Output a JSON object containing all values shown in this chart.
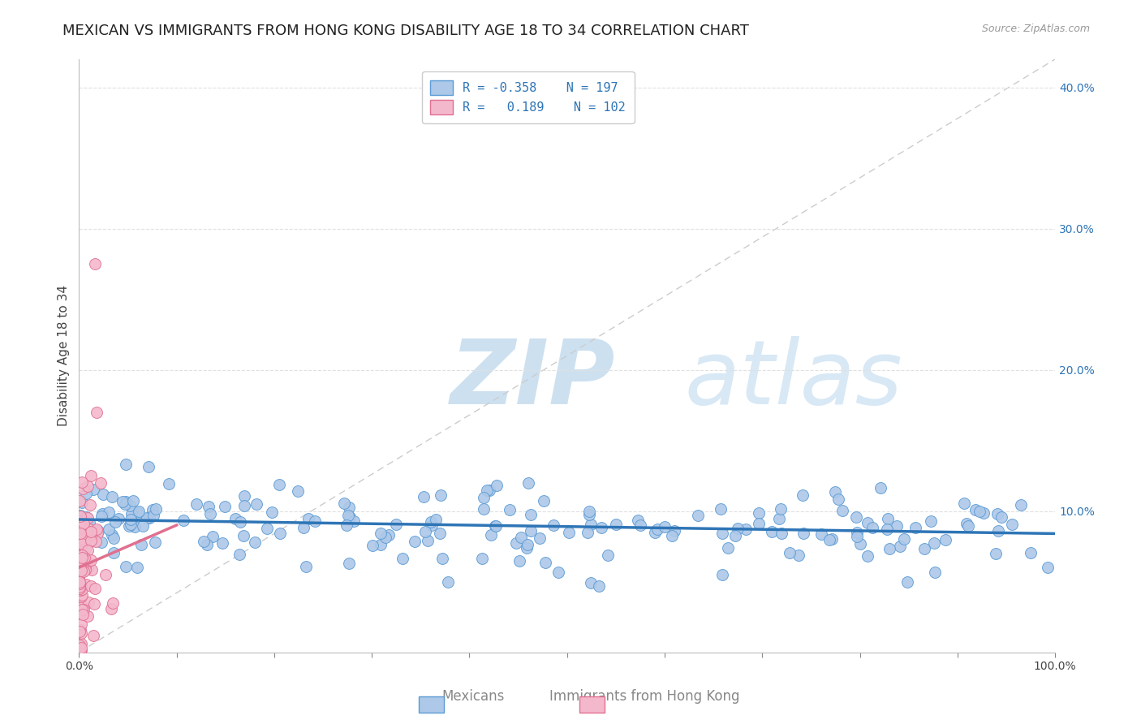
{
  "title": "MEXICAN VS IMMIGRANTS FROM HONG KONG DISABILITY AGE 18 TO 34 CORRELATION CHART",
  "source": "Source: ZipAtlas.com",
  "ylabel": "Disability Age 18 to 34",
  "xlim": [
    0.0,
    1.0
  ],
  "ylim": [
    0.0,
    0.42
  ],
  "yticks": [
    0.0,
    0.1,
    0.2,
    0.3,
    0.4
  ],
  "ytick_labels": [
    "",
    "10.0%",
    "20.0%",
    "30.0%",
    "40.0%"
  ],
  "xticks": [
    0.0,
    0.1,
    0.2,
    0.3,
    0.4,
    0.5,
    0.6,
    0.7,
    0.8,
    0.9,
    1.0
  ],
  "xtick_labels": [
    "0.0%",
    "",
    "",
    "",
    "",
    "",
    "",
    "",
    "",
    "",
    "100.0%"
  ],
  "blue_R": -0.358,
  "blue_N": 197,
  "pink_R": 0.189,
  "pink_N": 102,
  "blue_color": "#adc8e8",
  "blue_edge_color": "#5b9bd5",
  "pink_color": "#f4b8cc",
  "pink_edge_color": "#e07090",
  "blue_line_color": "#2e75b6",
  "pink_line_color": "#e07090",
  "diagonal_color": "#cccccc",
  "background_color": "#ffffff",
  "grid_color": "#e0e0e0",
  "title_fontsize": 13,
  "label_fontsize": 11,
  "tick_fontsize": 10,
  "legend_fontsize": 11,
  "blue_intercept": 0.094,
  "blue_slope": -0.01,
  "pink_intercept": 0.06,
  "pink_slope": 0.3
}
